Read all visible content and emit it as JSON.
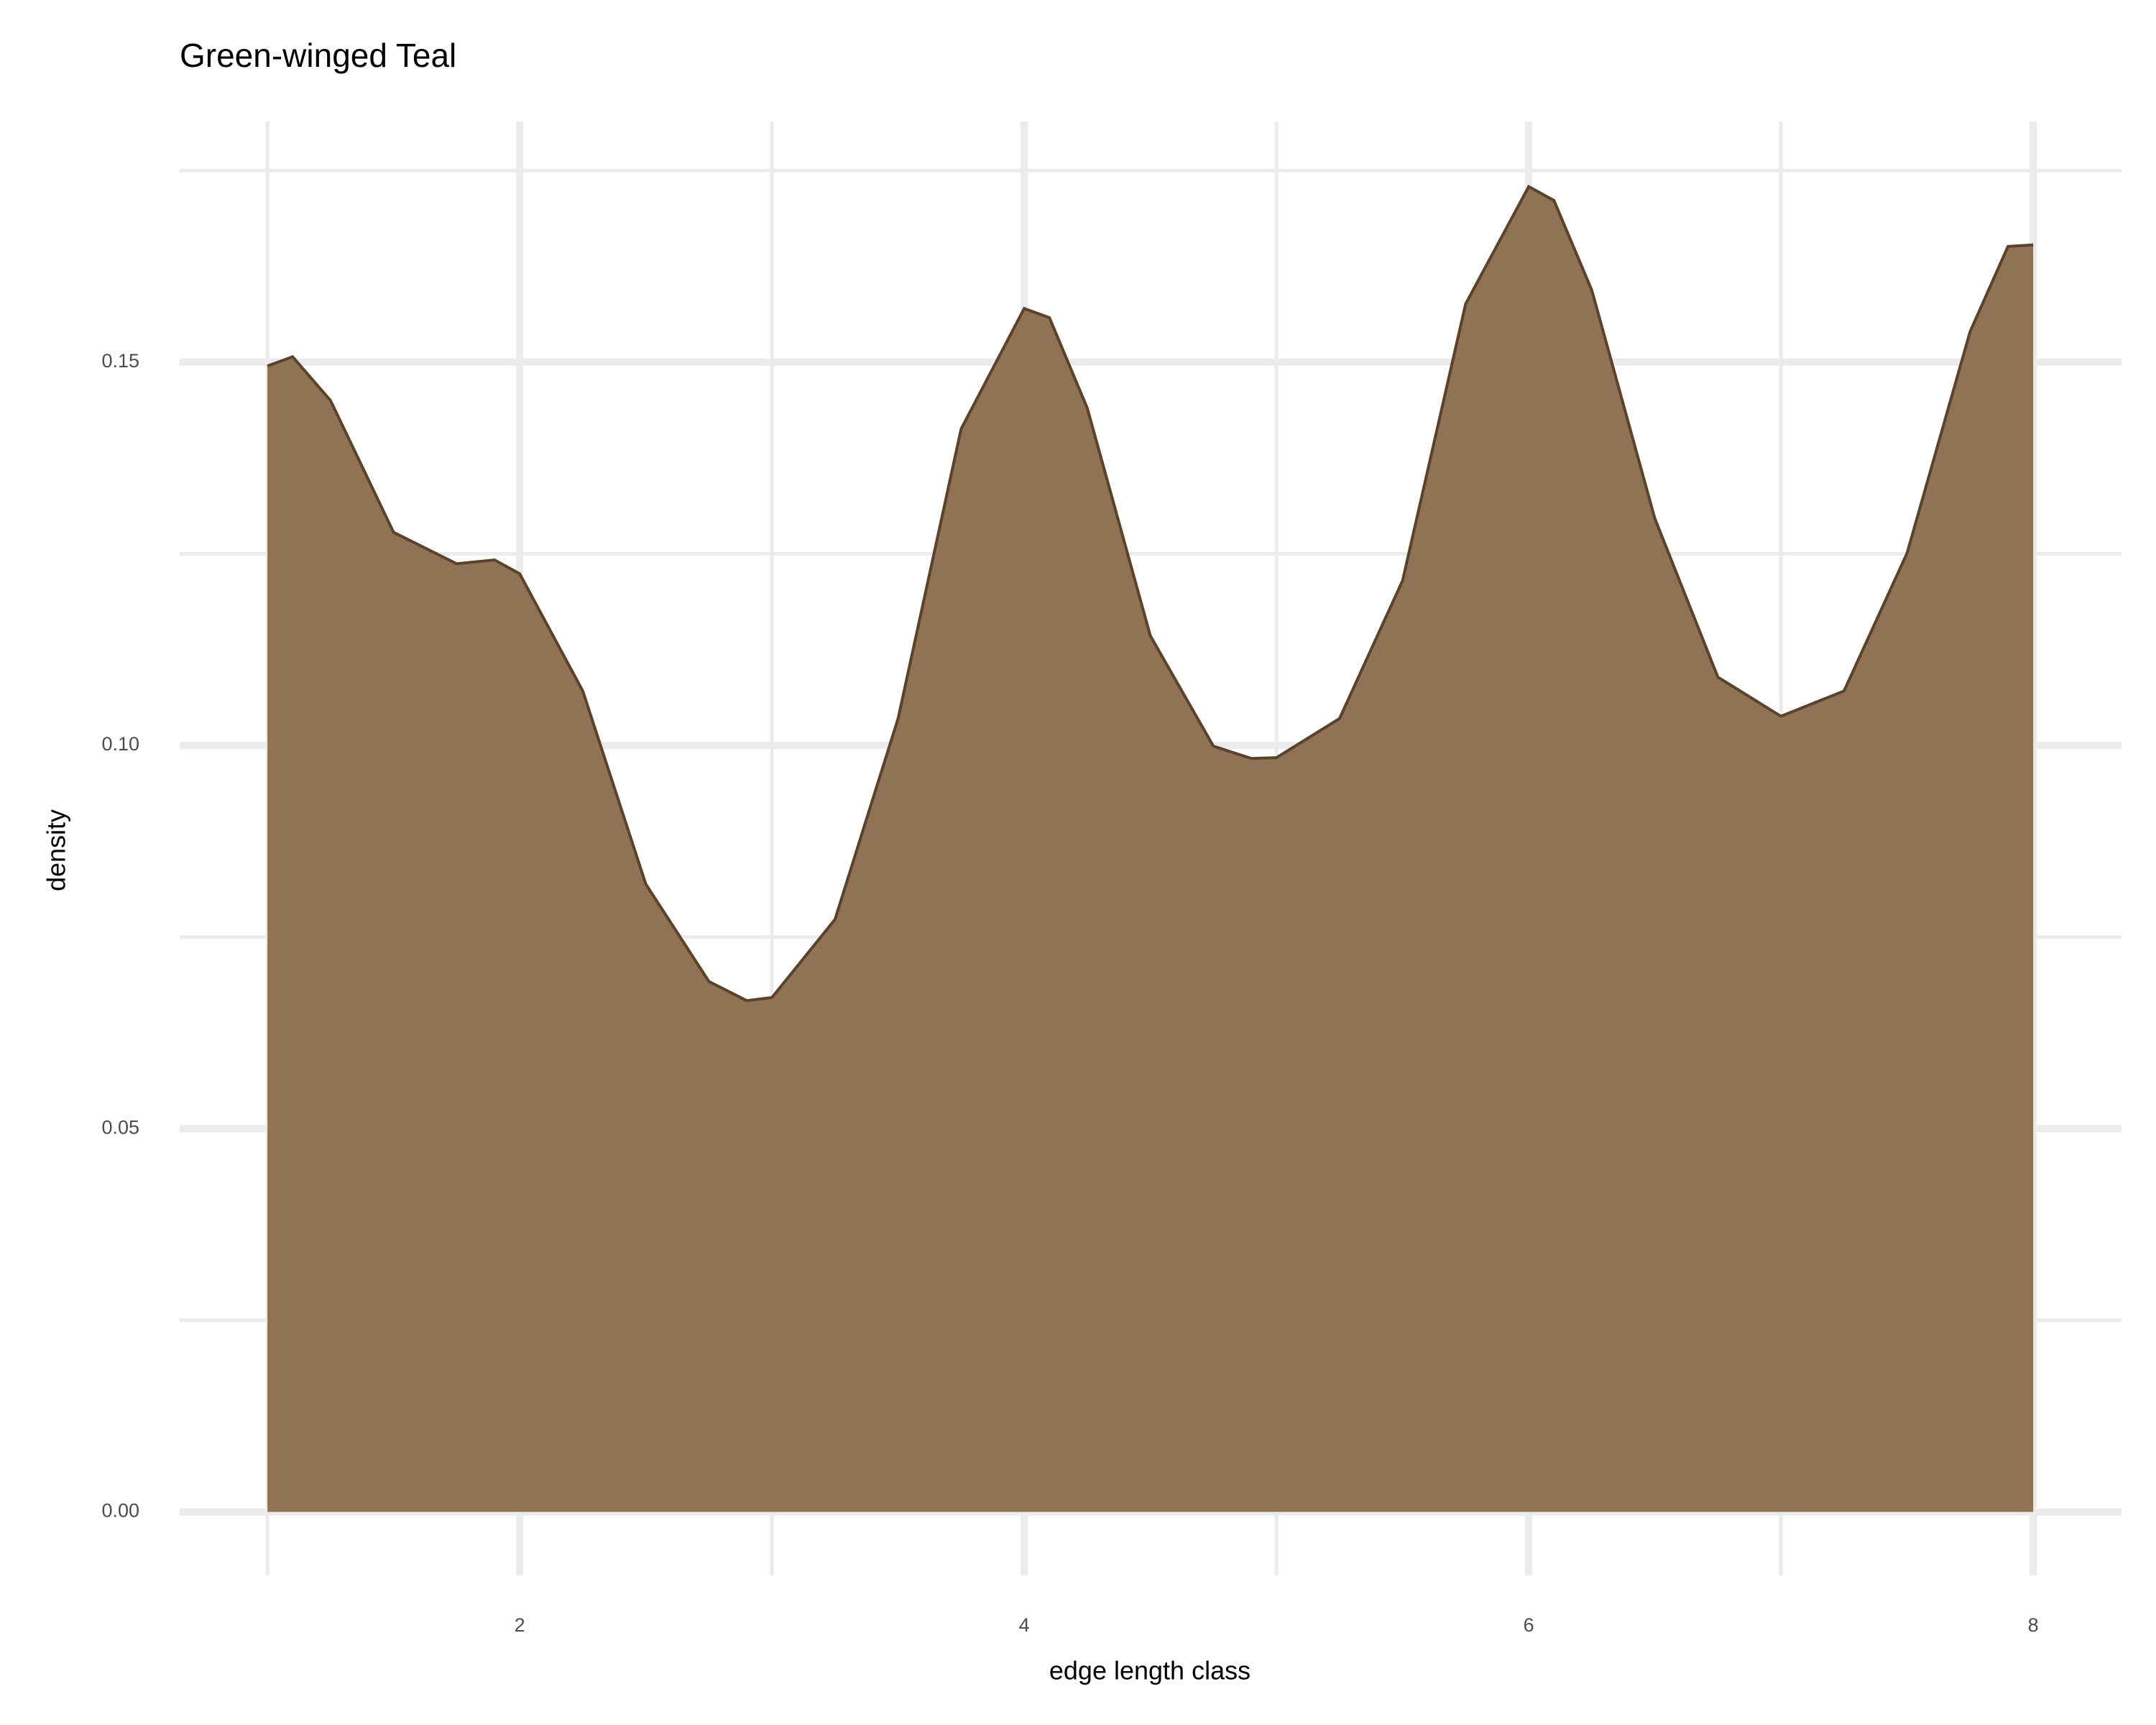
{
  "chart_data": {
    "type": "area",
    "title": "Green-winged Teal",
    "x_label": "edge length class",
    "y_label": "density",
    "color": "#8b6e4e",
    "line_color": "#5c4226",
    "x": [
      1,
      1.1,
      1.25,
      1.5,
      1.75,
      1.9,
      2,
      2.25,
      2.5,
      2.75,
      2.9,
      3,
      3.25,
      3.5,
      3.75,
      4,
      4.1,
      4.25,
      4.5,
      4.75,
      4.9,
      5,
      5.25,
      5.5,
      5.75,
      6,
      6.1,
      6.25,
      6.5,
      6.75,
      7,
      7.25,
      7.5,
      7.75,
      7.9,
      8
    ],
    "values": [
      0.1495,
      0.1507,
      0.145,
      0.1278,
      0.1237,
      0.1242,
      0.1224,
      0.1071,
      0.0819,
      0.0692,
      0.0667,
      0.0671,
      0.0773,
      0.1035,
      0.1413,
      0.157,
      0.1558,
      0.144,
      0.1143,
      0.0999,
      0.0983,
      0.0984,
      0.1035,
      0.1215,
      0.1576,
      0.1729,
      0.1711,
      0.1594,
      0.1296,
      0.1089,
      0.1038,
      0.1071,
      0.1251,
      0.154,
      0.1651,
      0.1653
    ],
    "xlim": [
      0.652,
      8.35
    ],
    "xticks": [
      2,
      4,
      6,
      8
    ],
    "ylim": [
      -0.0083,
      0.1814
    ],
    "yticks": [
      {
        "value": 0,
        "label": "0.00"
      },
      {
        "value": 0.05,
        "label": "0.05"
      },
      {
        "value": 0.1,
        "label": "0.10"
      },
      {
        "value": 0.15,
        "label": "0.15"
      }
    ],
    "grid": true
  }
}
